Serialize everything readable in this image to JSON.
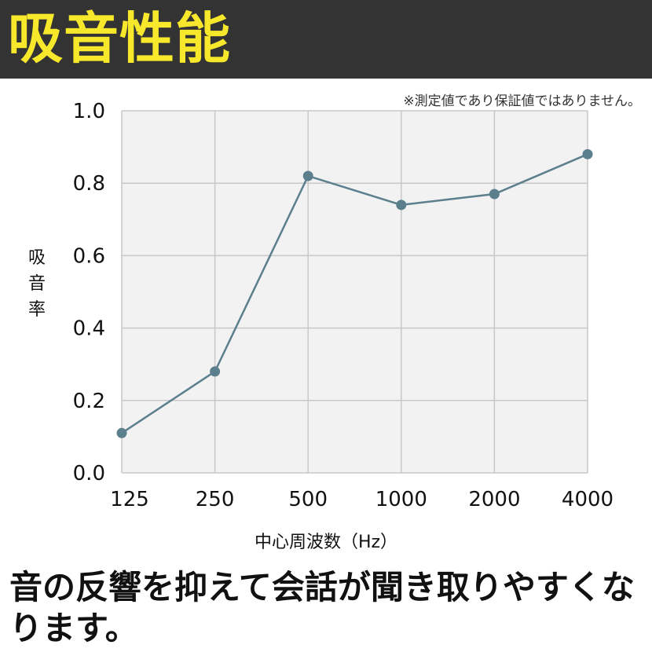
{
  "header": {
    "title": "吸音性能",
    "accent_color": "#f7e82c",
    "background": "#333333"
  },
  "note": "※測定値であり保証値ではありません。",
  "caption": "音の反響を抑えて会話が聞き取りやすくなります。",
  "chart_data": {
    "type": "line",
    "title": "",
    "xlabel": "中心周波数（Hz）",
    "ylabel": "吸音率",
    "categories": [
      "125",
      "250",
      "500",
      "1000",
      "2000",
      "4000"
    ],
    "series": [
      {
        "values": [
          0.11,
          0.28,
          0.82,
          0.74,
          0.77,
          0.88
        ],
        "color": "#5b7f8c"
      }
    ],
    "ylim": [
      0,
      1.0
    ],
    "yticks": [
      "0.0",
      "0.2",
      "0.4",
      "0.6",
      "0.8",
      "1.0"
    ],
    "grid": true,
    "legend": "none",
    "plot_background": "#f2f2f2"
  }
}
